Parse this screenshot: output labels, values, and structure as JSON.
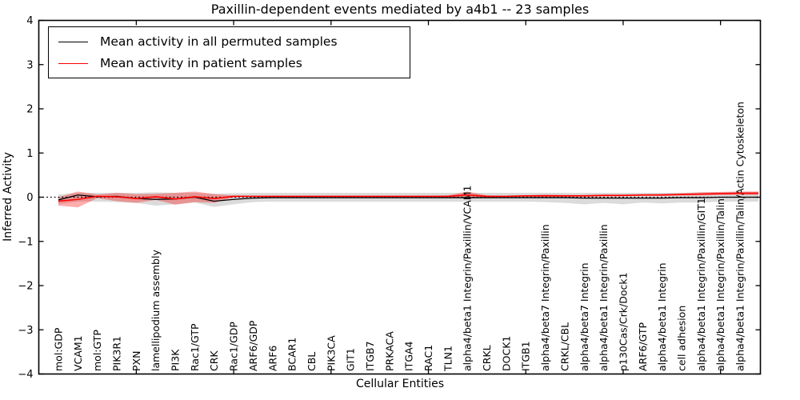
{
  "chart_data": {
    "type": "line",
    "title": "Paxillin-dependent events mediated by a4b1 -- 23 samples",
    "xlabel": "Cellular Entities",
    "ylabel": "Inferred Activity",
    "ylim": [
      -4,
      4
    ],
    "yticks": [
      -4,
      -3,
      -2,
      -1,
      0,
      1,
      2,
      3,
      4
    ],
    "yticklabels": [
      "−4",
      "−3",
      "−2",
      "−1",
      "0",
      "1",
      "2",
      "3",
      "4"
    ],
    "x_major_tick_indices": [
      4,
      9,
      14,
      19,
      24,
      29,
      34
    ],
    "grid": false,
    "zero_line_style": "dotted",
    "legend_position": "upper left",
    "categories": [
      "mol:GDP",
      "VCAM1",
      "mol:GTP",
      "PIK3R1",
      "PXN",
      "lamellipodium assembly",
      "PI3K",
      "Rac1/GTP",
      "CRK",
      "Rac1/GDP",
      "ARF6/GDP",
      "ARF6",
      "BCAR1",
      "CBL",
      "PIK3CA",
      "GIT1",
      "ITGB7",
      "PRKACA",
      "ITGA4",
      "RAC1",
      "TLN1",
      "alpha4/beta1 Integrin/Paxillin/VCAM1",
      "CRKL",
      "DOCK1",
      "ITGB1",
      "alpha4/beta7 Integrin/Paxillin",
      "CRKL/CBL",
      "alpha4/beta7 Integrin",
      "alpha4/beta1 Integrin/Paxillin",
      "p130Cas/Crk/Dock1",
      "ARF6/GTP",
      "alpha4/beta1 Integrin",
      "cell adhesion",
      "alpha4/beta1 Integrin/Paxillin/GIT1",
      "alpha4/beta1 Integrin/Paxillin/Talin",
      "alpha4/beta1 Integrin/Paxillin/Talin/Actin Cytoskeleton"
    ],
    "series": [
      {
        "name": "Mean activity in all permuted samples",
        "color": "#000000",
        "values": [
          -0.06,
          0.05,
          0.01,
          0.02,
          -0.03,
          -0.05,
          -0.04,
          0.0,
          -0.09,
          -0.05,
          -0.02,
          -0.01,
          -0.01,
          -0.01,
          -0.01,
          -0.01,
          -0.01,
          -0.01,
          -0.01,
          -0.01,
          -0.01,
          -0.01,
          -0.01,
          -0.01,
          -0.01,
          -0.01,
          -0.01,
          -0.02,
          -0.02,
          -0.02,
          -0.02,
          -0.02,
          -0.01,
          -0.01,
          0.0,
          0.0
        ]
      },
      {
        "name": "Mean activity in patient samples",
        "color": "#ff0000",
        "values": [
          -0.09,
          -0.05,
          0.02,
          0.01,
          -0.03,
          0.01,
          -0.04,
          0.01,
          -0.03,
          0.02,
          0.02,
          0.02,
          0.02,
          0.02,
          0.02,
          0.02,
          0.02,
          0.02,
          0.02,
          0.02,
          0.02,
          0.05,
          0.02,
          0.02,
          0.03,
          0.03,
          0.03,
          0.03,
          0.04,
          0.04,
          0.05,
          0.05,
          0.06,
          0.07,
          0.08,
          0.09
        ]
      }
    ],
    "bands": [
      {
        "name": "permuted-samples-range",
        "color": "#bebebe",
        "opacity": 0.55,
        "upper": [
          0.06,
          0.1,
          0.1,
          0.1,
          0.1,
          0.11,
          0.1,
          0.1,
          0.08,
          0.09,
          0.1,
          0.1,
          0.1,
          0.1,
          0.1,
          0.1,
          0.1,
          0.1,
          0.1,
          0.1,
          0.1,
          0.1,
          0.1,
          0.1,
          0.1,
          0.1,
          0.1,
          0.1,
          0.1,
          0.1,
          0.1,
          0.1,
          0.1,
          0.11,
          0.11,
          0.12
        ],
        "lower": [
          -0.16,
          -0.1,
          -0.1,
          -0.11,
          -0.13,
          -0.19,
          -0.16,
          -0.12,
          -0.22,
          -0.16,
          -0.11,
          -0.1,
          -0.1,
          -0.1,
          -0.1,
          -0.1,
          -0.1,
          -0.1,
          -0.1,
          -0.1,
          -0.1,
          -0.1,
          -0.1,
          -0.1,
          -0.1,
          -0.11,
          -0.13,
          -0.16,
          -0.13,
          -0.16,
          -0.12,
          -0.14,
          -0.12,
          -0.12,
          -0.1,
          -0.1
        ]
      },
      {
        "name": "patient-samples-range",
        "color": "#ff0000",
        "opacity": 0.32,
        "upper": [
          0.0,
          0.13,
          0.06,
          0.1,
          0.07,
          0.08,
          0.1,
          0.13,
          0.07,
          0.04,
          0.03,
          0.03,
          0.03,
          0.03,
          0.03,
          0.03,
          0.03,
          0.03,
          0.03,
          0.03,
          0.04,
          0.13,
          0.04,
          0.03,
          0.04,
          0.06,
          0.05,
          0.05,
          0.06,
          0.06,
          0.07,
          0.08,
          0.09,
          0.11,
          0.12,
          0.13
        ],
        "lower": [
          -0.19,
          -0.23,
          -0.02,
          -0.09,
          -0.13,
          -0.06,
          -0.17,
          -0.11,
          -0.13,
          0.0,
          0.01,
          0.01,
          0.01,
          0.01,
          0.01,
          0.01,
          0.01,
          0.01,
          0.01,
          0.01,
          0.01,
          -0.03,
          0.0,
          0.01,
          0.01,
          0.01,
          0.01,
          0.01,
          0.02,
          0.02,
          0.03,
          0.03,
          0.04,
          0.04,
          0.05,
          0.05
        ]
      }
    ]
  }
}
